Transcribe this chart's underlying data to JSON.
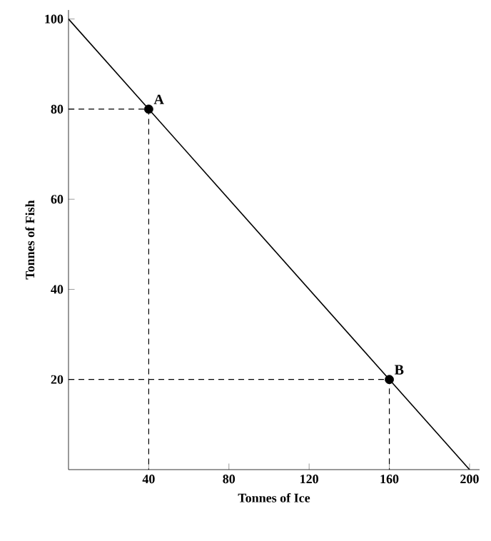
{
  "chart_data": {
    "type": "line",
    "xlabel": "Tonnes of Ice",
    "ylabel": "Tonnes of Fish",
    "xlim": [
      0,
      205
    ],
    "ylim": [
      0,
      102
    ],
    "xticks": [
      40,
      80,
      120,
      160,
      200
    ],
    "yticks": [
      20,
      40,
      60,
      80,
      100
    ],
    "series": [
      {
        "color": "#000000",
        "line_style": "solid",
        "marker": "none",
        "x": [
          0,
          200
        ],
        "values": [
          100,
          0
        ]
      },
      {
        "color": "#000000",
        "line_style": "dashed",
        "marker": "none",
        "x": [
          0,
          40,
          40
        ],
        "values": [
          80,
          80,
          0
        ]
      },
      {
        "color": "#000000",
        "line_style": "dashed",
        "marker": "none",
        "x": [
          0,
          160,
          160
        ],
        "values": [
          20,
          20,
          0
        ]
      },
      {
        "type": "scatter",
        "color": "#000000",
        "marker": "circle",
        "x": [
          40,
          160
        ],
        "values": [
          80,
          20
        ]
      }
    ],
    "annotations": [
      {
        "text": "A",
        "x": 40,
        "y": 80
      },
      {
        "text": "B",
        "x": 160,
        "y": 20
      }
    ]
  }
}
